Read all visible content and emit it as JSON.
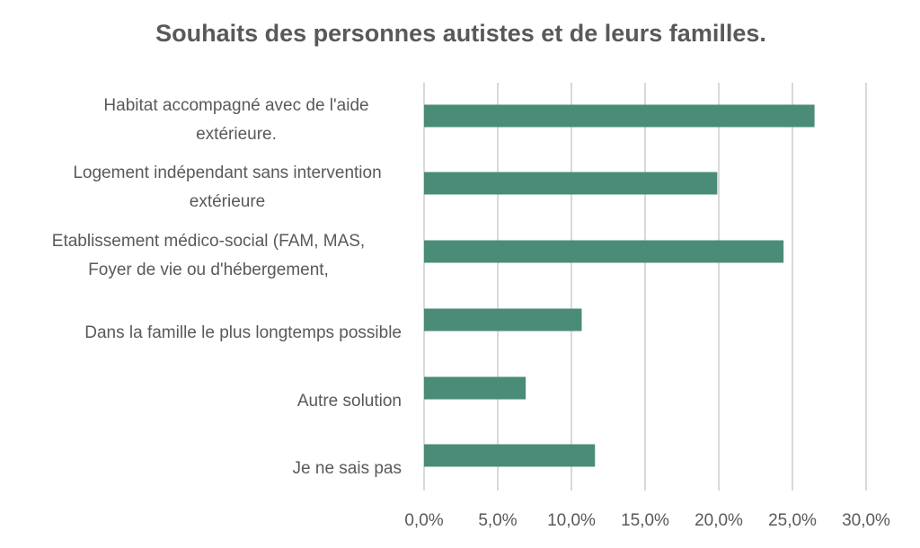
{
  "chart_data": {
    "type": "bar",
    "orientation": "horizontal",
    "title": "Souhaits des personnes autistes et de leurs familles.",
    "xlabel": "",
    "ylabel": "",
    "categories": [
      [
        "Habitat accompagné avec de l'aide",
        "extérieure."
      ],
      [
        "Logement indépendant sans intervention",
        "extérieure"
      ],
      [
        "Etablissement médico-social (FAM, MAS,",
        "Foyer de vie ou d'hébergement,"
      ],
      [
        "Dans la famille le plus longtemps possible"
      ],
      [
        "Autre solution"
      ],
      [
        "Je ne sais pas"
      ]
    ],
    "values": [
      26.5,
      19.9,
      24.4,
      10.7,
      6.9,
      11.6
    ],
    "xlim": [
      0,
      30
    ],
    "ticks": [
      "0,0%",
      "5,0%",
      "10,0%",
      "15,0%",
      "20,0%",
      "25,0%",
      "30,0%"
    ],
    "grid": true,
    "legend": "none",
    "bar_color": "#4a8c78",
    "grid_color": "#d9d9d9",
    "text_color": "#595959"
  }
}
